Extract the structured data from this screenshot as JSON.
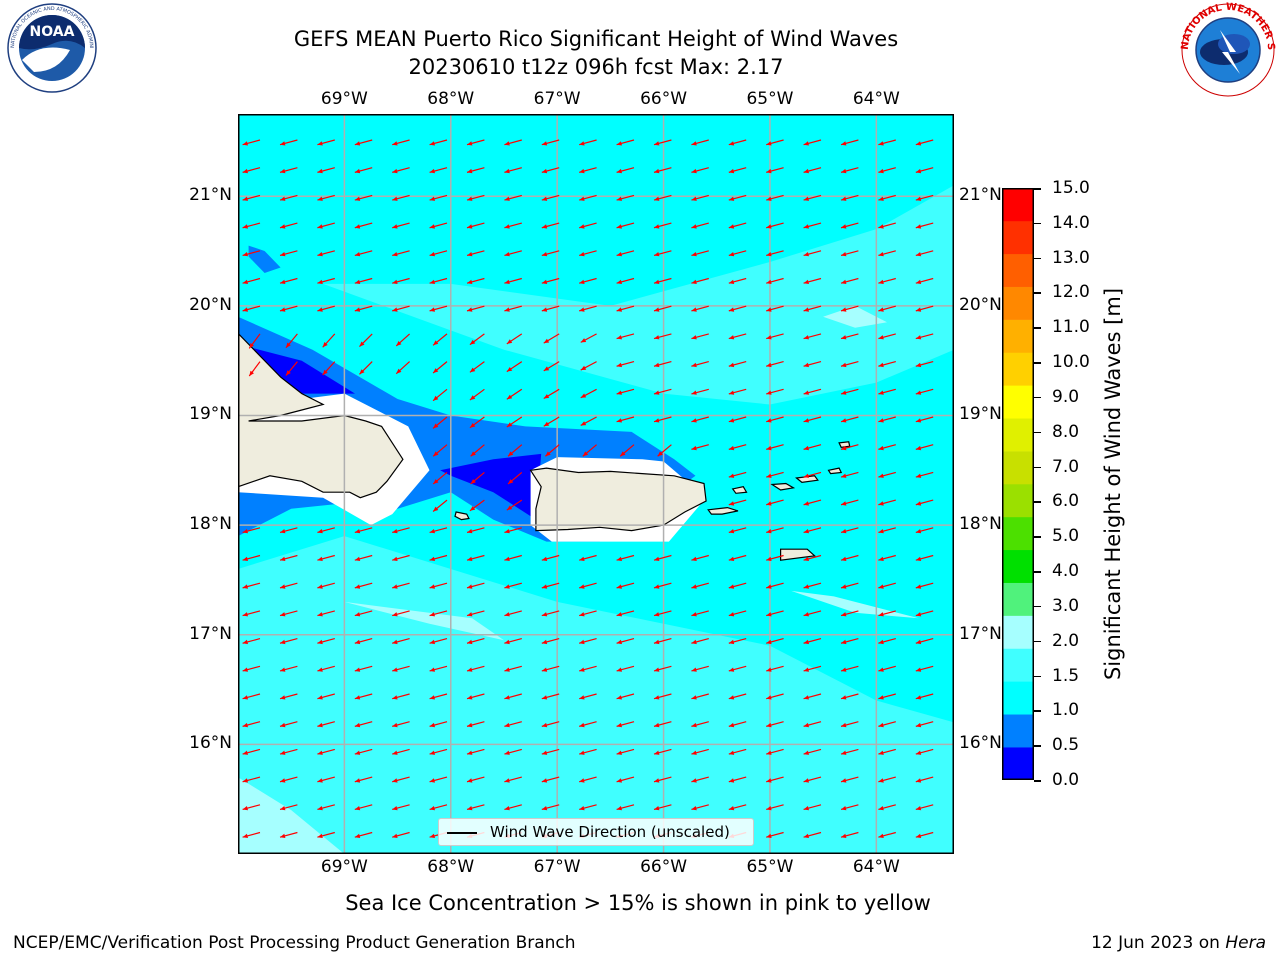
{
  "header": {
    "title_line1": "GEFS MEAN Puerto Rico Significant Height of Wind Waves",
    "title_line2": "20230610 t12z 096h fcst   Max: 2.17"
  },
  "logos": {
    "noaa_text": "NOAA",
    "noaa_ring_text": "NATIONAL OCEANIC AND ATMOSPHERIC ADMINISTRATION · U.S. DEPARTMENT OF COMMERCE",
    "nws_ring_text": "NATIONAL WEATHER SERVICE"
  },
  "map": {
    "lon_labels": [
      "69°W",
      "68°W",
      "67°W",
      "66°W",
      "65°W",
      "64°W"
    ],
    "lat_labels": [
      "21°N",
      "20°N",
      "19°N",
      "18°N",
      "17°N",
      "16°N"
    ],
    "lon_values": [
      -69,
      -68,
      -67,
      -66,
      -65,
      -64
    ],
    "lat_values": [
      21,
      20,
      19,
      18,
      17,
      16
    ],
    "extent": {
      "lon_min": -70.0,
      "lon_max": -63.27,
      "lat_min": 15.0,
      "lat_max": 21.75
    },
    "legend_label": "Wind Wave Direction (unscaled)",
    "colors": {
      "land": "#efedde",
      "coast": "#000000",
      "arrow": "#ff0000",
      "grid": "#b0b0b0",
      "sea_default": "#00ffff",
      "sea_light": "#40ffff",
      "sea_lighter": "#a6ffff",
      "sea_mid": "#0080ff",
      "sea_deep": "#0000ff"
    }
  },
  "colorbar": {
    "title": "Significant Height of Wind Waves [m]",
    "tick_labels": [
      "15.0",
      "14.0",
      "13.0",
      "12.0",
      "11.0",
      "10.0",
      "9.0",
      "8.0",
      "7.0",
      "6.0",
      "5.0",
      "4.0",
      "3.0",
      "2.0",
      "1.5",
      "1.0",
      "0.5",
      "0.0"
    ],
    "levels": [
      0.0,
      0.5,
      1.0,
      1.5,
      2.0,
      3.0,
      4.0,
      5.0,
      6.0,
      7.0,
      8.0,
      9.0,
      10.0,
      11.0,
      12.0,
      13.0,
      14.0,
      15.0
    ],
    "colors": [
      "#0000ff",
      "#0080ff",
      "#00ffff",
      "#40ffff",
      "#a6ffff",
      "#50f27c",
      "#00e000",
      "#4ce000",
      "#9be000",
      "#c8e000",
      "#e0f000",
      "#ffff00",
      "#ffd000",
      "#ffb000",
      "#ff8800",
      "#ff5f00",
      "#ff3000",
      "#ff0000"
    ]
  },
  "footer": {
    "note": "Sea Ice Concentration > 15% is shown in pink to yellow",
    "left": "NCEP/EMC/Verification Post Processing Product Generation Branch",
    "right_prefix": "12 Jun 2023 on ",
    "right_machine": "Hera"
  }
}
